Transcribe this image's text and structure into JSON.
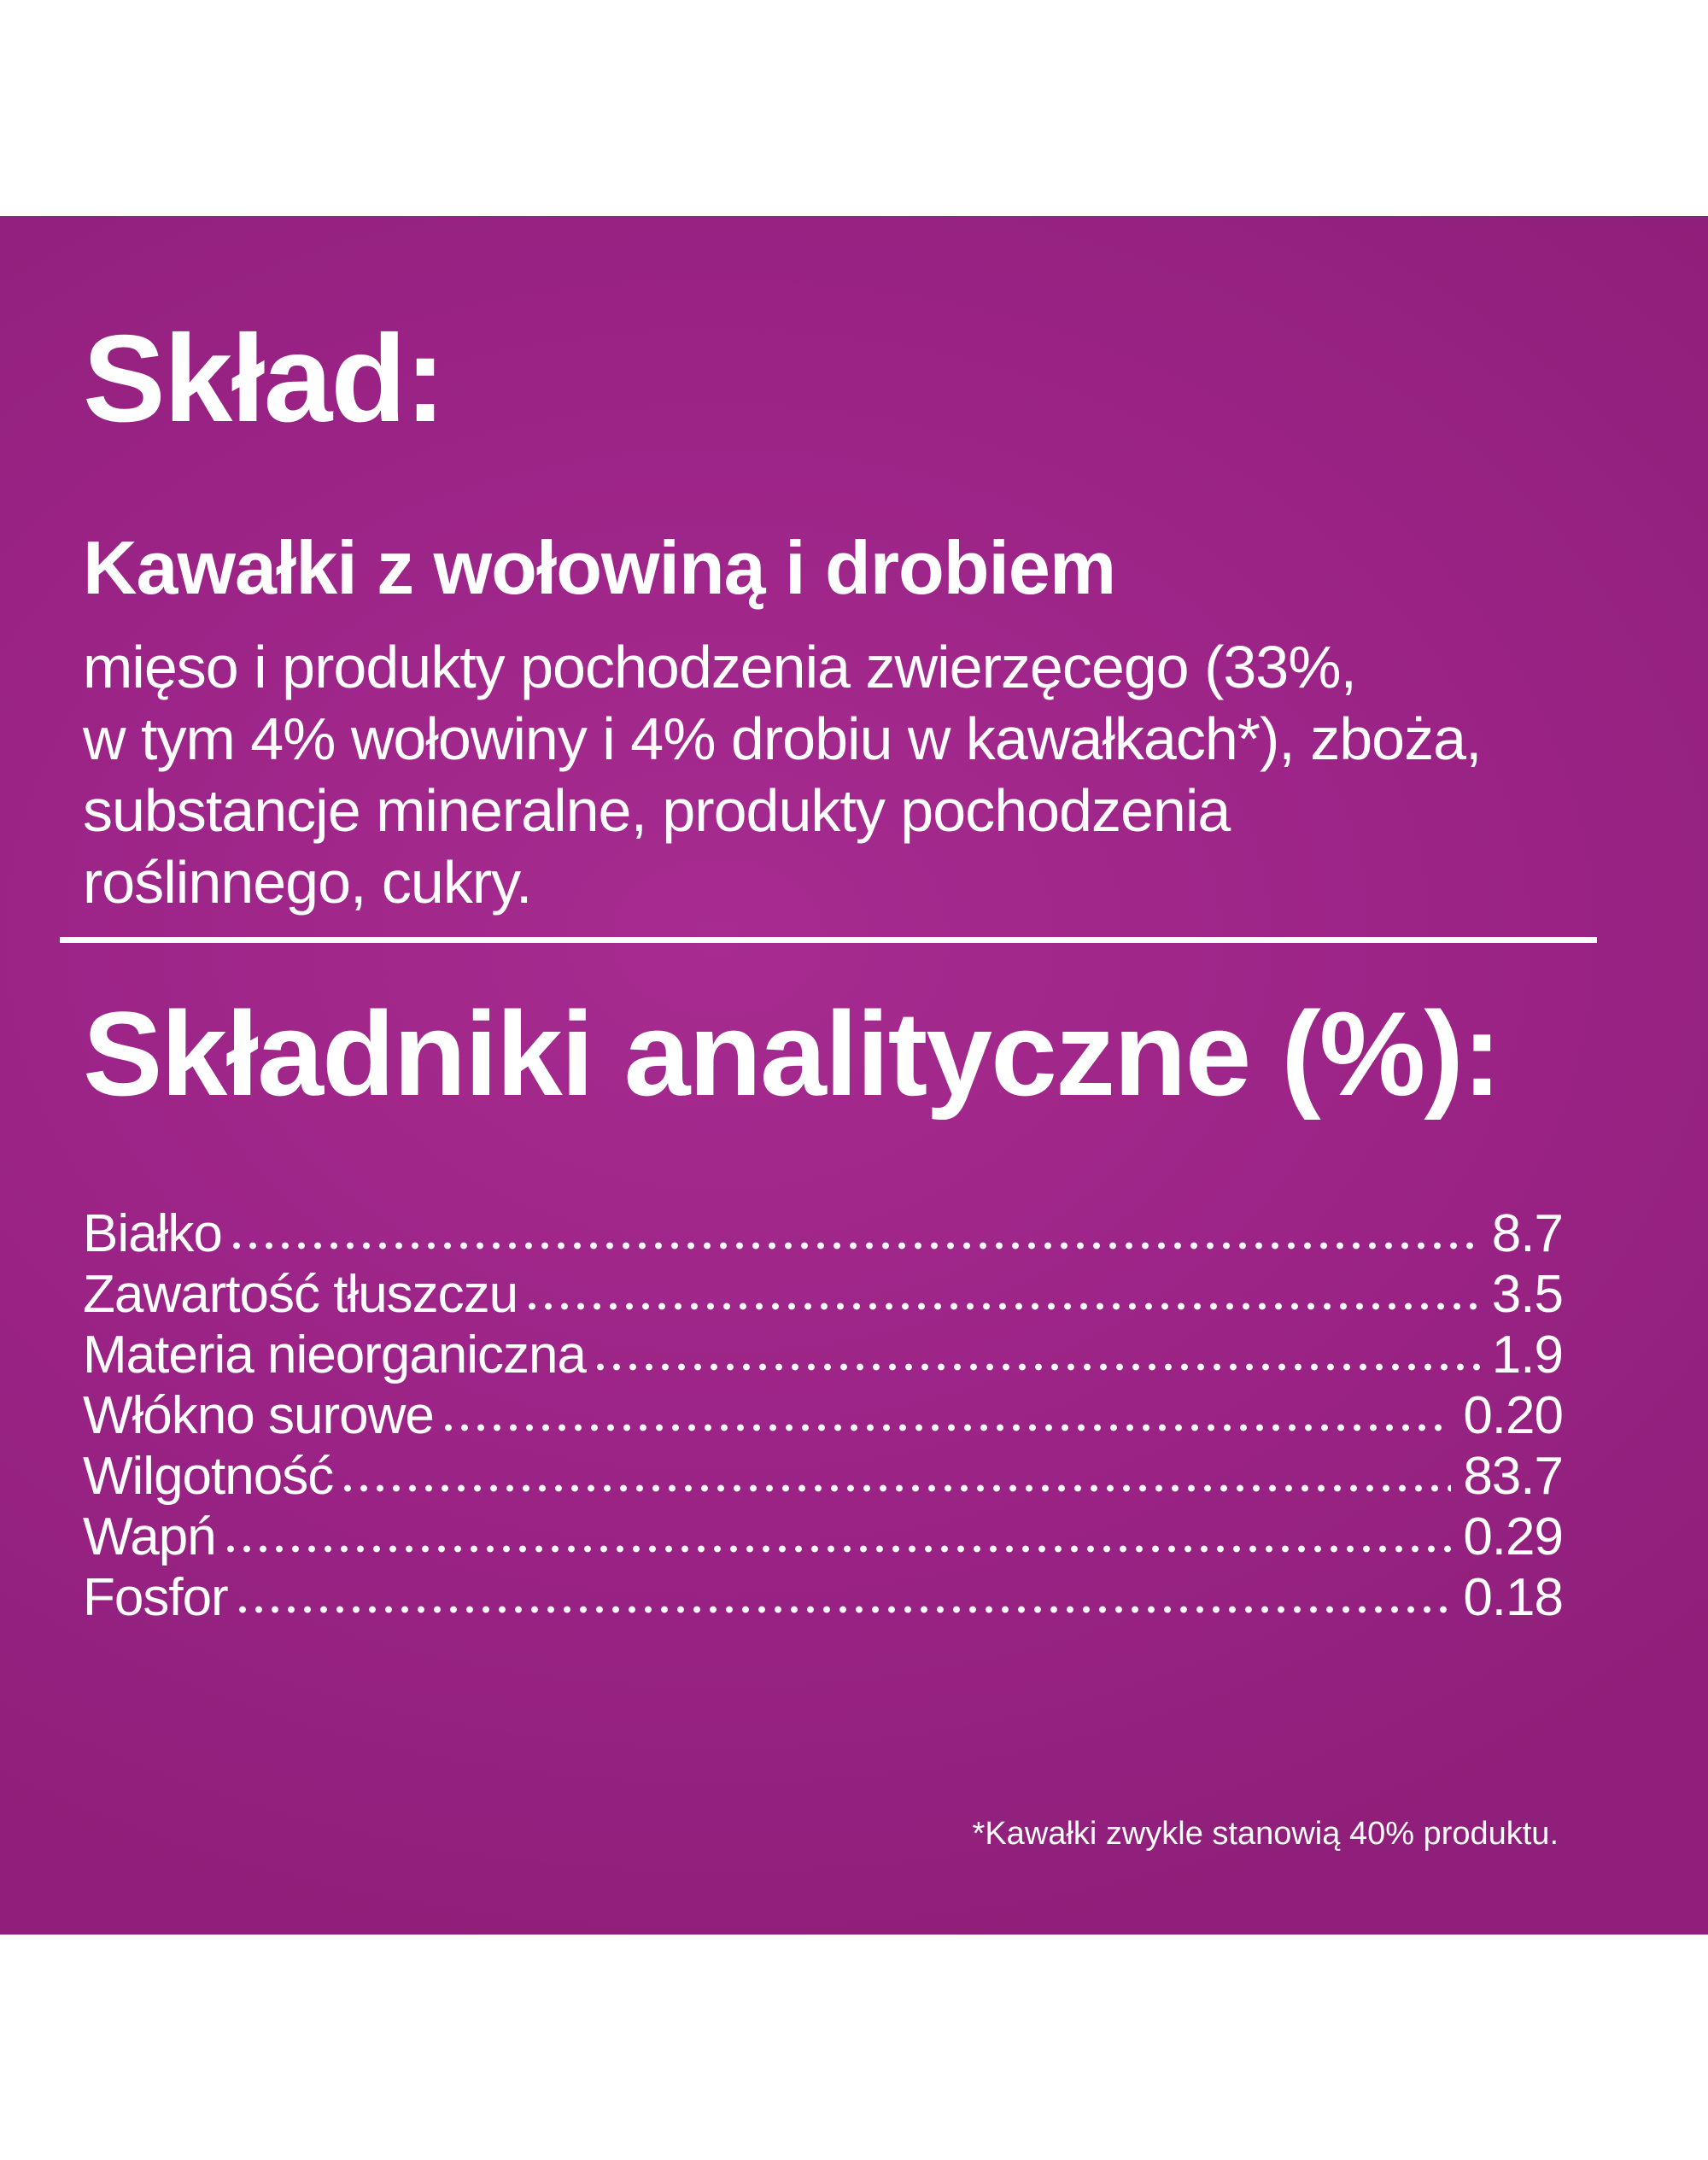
{
  "panel": {
    "background_color": "#9b2386",
    "background_light": "#a72b90",
    "background_dark": "#8f1f7a",
    "text_color": "#ffffff"
  },
  "sections": {
    "composition": {
      "title": "Skład:",
      "variant_name": "Kawałki z wołowiną i drobiem",
      "ingredients_lines": [
        "mięso i produkty pochodzenia zwierzęcego (33%,",
        "w tym 4% wołowiny i 4% drobiu w kawałkach*), zboża,",
        "substancje mineralne, produkty pochodzenia",
        "roślinnego, cukry."
      ]
    },
    "analytical": {
      "title": "Składniki analityczne (%):",
      "rows": [
        {
          "label": "Białko",
          "value": "8.7"
        },
        {
          "label": "Zawartość tłuszczu",
          "value": "3.5"
        },
        {
          "label": "Materia nieorganiczna",
          "value": "1.9"
        },
        {
          "label": "Włókno surowe",
          "value": "0.20"
        },
        {
          "label": "Wilgotność",
          "value": "83.7"
        },
        {
          "label": "Wapń",
          "value": "0.29"
        },
        {
          "label": "Fosfor",
          "value": "0.18"
        }
      ]
    },
    "footnote": "*Kawałki zwykle stanowią 40% produktu."
  }
}
